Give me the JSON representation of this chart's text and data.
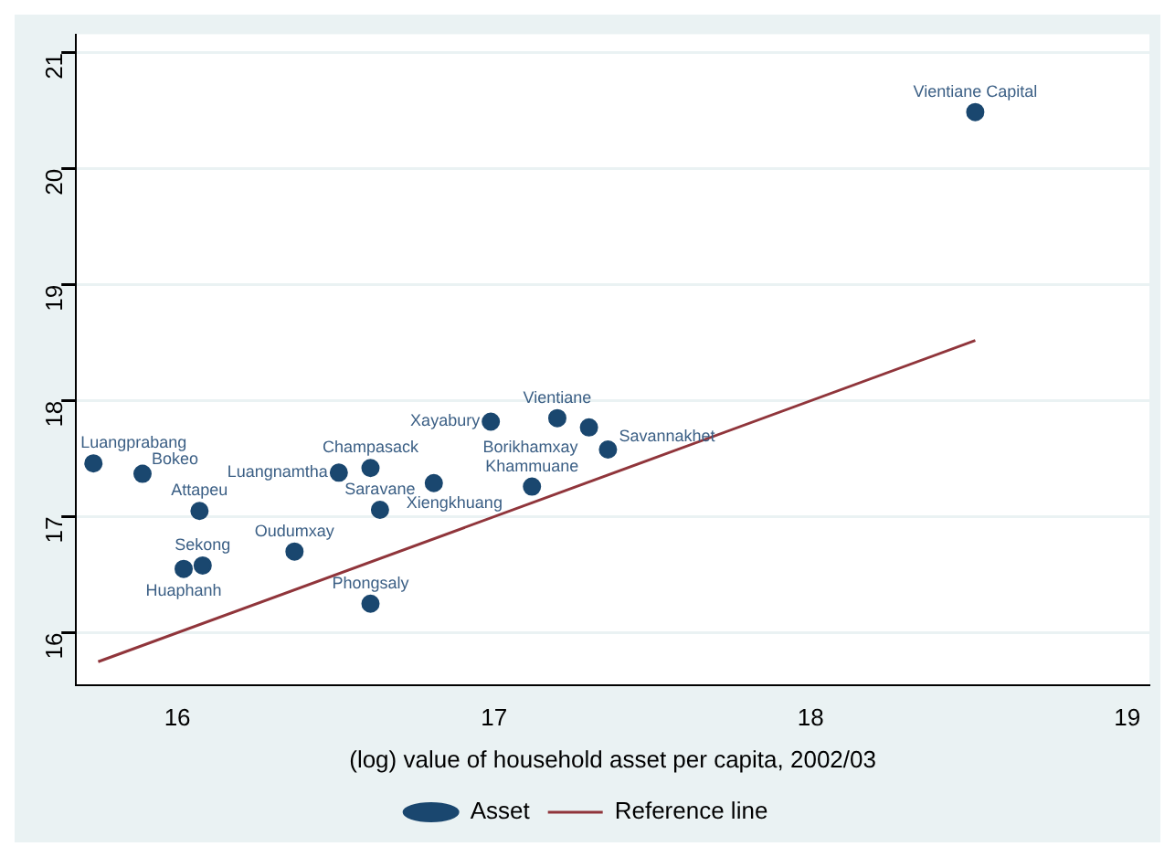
{
  "chart_data": {
    "type": "scatter",
    "xlabel": "(log) value of household asset per capita, 2002/03",
    "xlim": [
      15.68,
      19.07
    ],
    "xticks": [
      16,
      17,
      18,
      19
    ],
    "ylim": [
      15.55,
      21.16
    ],
    "yticks": [
      16,
      17,
      18,
      19,
      20,
      21
    ],
    "grid": "y",
    "legend": "bottom",
    "marker": "circle",
    "series": [
      {
        "name": "Asset",
        "color": "#1a476f",
        "x": [
          15.735,
          15.89,
          16.07,
          16.08,
          16.02,
          16.37,
          16.51,
          16.61,
          16.64,
          16.61,
          16.81,
          16.99,
          17.2,
          17.3,
          17.36,
          17.12,
          18.52
        ],
        "values": [
          17.46,
          17.37,
          17.05,
          16.58,
          16.55,
          16.7,
          17.38,
          17.42,
          17.06,
          16.25,
          17.29,
          17.82,
          17.85,
          17.77,
          17.58,
          17.26,
          20.49
        ]
      },
      {
        "name": "Reference line",
        "type": "line",
        "color": "#90353b",
        "marker": "none",
        "x": [
          15.75,
          18.52
        ],
        "values": [
          15.75,
          18.52
        ]
      }
    ],
    "annotations": [
      {
        "text": "Luangprabang",
        "x": 15.735,
        "y": 17.46
      },
      {
        "text": "Bokeo",
        "x": 15.89,
        "y": 17.37
      },
      {
        "text": "Attapeu",
        "x": 16.07,
        "y": 17.05
      },
      {
        "text": "Sekong",
        "x": 16.08,
        "y": 16.58
      },
      {
        "text": "Huaphanh",
        "x": 16.02,
        "y": 16.55
      },
      {
        "text": "Oudumxay",
        "x": 16.37,
        "y": 16.7
      },
      {
        "text": "Luangnamtha",
        "x": 16.51,
        "y": 17.38
      },
      {
        "text": "Champasack",
        "x": 16.61,
        "y": 17.42
      },
      {
        "text": "Saravane",
        "x": 16.64,
        "y": 17.06
      },
      {
        "text": "Phongsaly",
        "x": 16.61,
        "y": 16.25
      },
      {
        "text": "Xiengkhuang",
        "x": 16.81,
        "y": 17.29
      },
      {
        "text": "Xayabury",
        "x": 16.99,
        "y": 17.82
      },
      {
        "text": "Vientiane",
        "x": 17.2,
        "y": 17.85
      },
      {
        "text": "Borikhamxay",
        "x": 17.3,
        "y": 17.77
      },
      {
        "text": "Savannakhet",
        "x": 17.36,
        "y": 17.58
      },
      {
        "text": "Khammuane",
        "x": 17.12,
        "y": 17.26
      },
      {
        "text": "Vientiane Capital",
        "x": 18.52,
        "y": 20.49
      }
    ]
  }
}
